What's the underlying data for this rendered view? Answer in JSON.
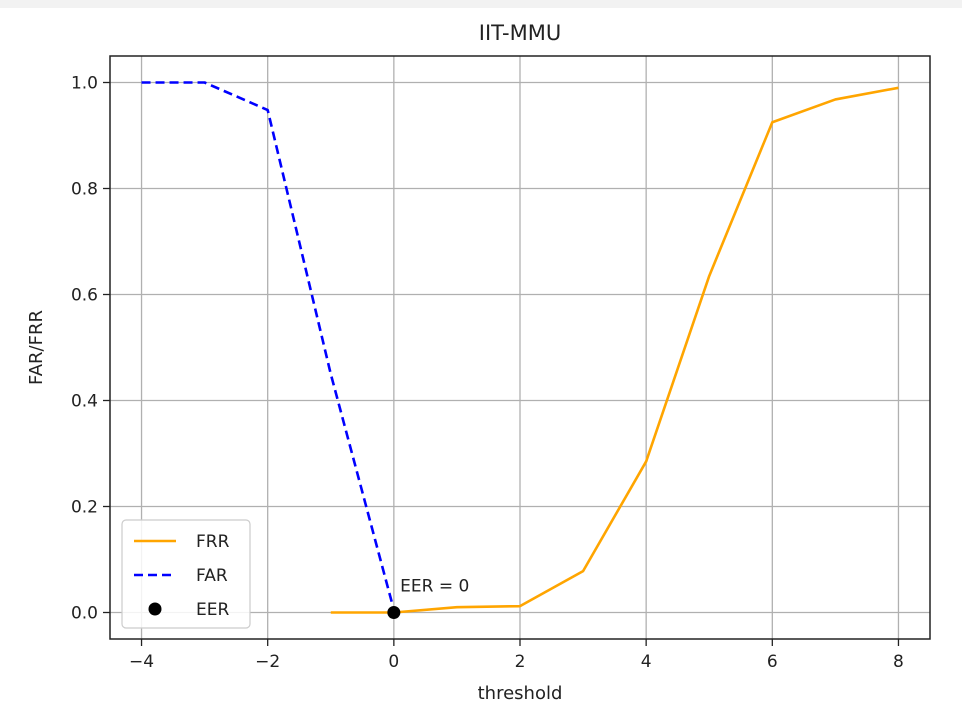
{
  "chart_data": {
    "type": "line",
    "title": "IIT-MMU",
    "xlabel": "threshold",
    "ylabel": "FAR/FRR",
    "xlim": [
      -4.5,
      8.5
    ],
    "ylim": [
      -0.05,
      1.05
    ],
    "xticks": [
      -4,
      -2,
      0,
      2,
      4,
      6,
      8
    ],
    "xtick_labels": [
      "−4",
      "−2",
      "0",
      "2",
      "4",
      "6",
      "8"
    ],
    "yticks": [
      0.0,
      0.2,
      0.4,
      0.6,
      0.8,
      1.0
    ],
    "ytick_labels": [
      "0.0",
      "0.2",
      "0.4",
      "0.6",
      "0.8",
      "1.0"
    ],
    "grid": true,
    "legend_position": "lower-left",
    "series": [
      {
        "name": "FRR",
        "style": "solid",
        "color": "#ffa500",
        "x": [
          -1,
          0,
          1,
          2,
          3,
          4,
          5,
          6,
          7,
          8
        ],
        "y": [
          0.0,
          0.0,
          0.01,
          0.012,
          0.078,
          0.285,
          0.635,
          0.925,
          0.968,
          0.99
        ]
      },
      {
        "name": "FAR",
        "style": "dashed",
        "color": "#0000ff",
        "x": [
          -4,
          -3,
          -2,
          -1,
          0
        ],
        "y": [
          1.0,
          1.0,
          0.948,
          0.45,
          0.005
        ]
      }
    ],
    "markers": [
      {
        "name": "EER",
        "x": 0,
        "y": 0.0,
        "color": "#000000"
      }
    ],
    "annotations": [
      {
        "text": "EER = 0",
        "x": 0.1,
        "y": 0.04
      }
    ]
  }
}
